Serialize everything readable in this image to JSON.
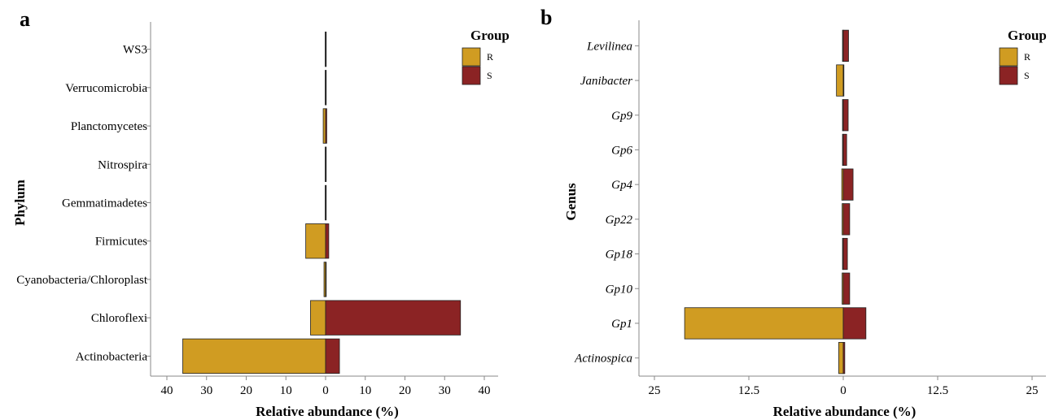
{
  "colors": {
    "R": "#D09C22",
    "S": "#8B2324",
    "axis": "#888888",
    "border": "#222222"
  },
  "chart_data": [
    {
      "panel": "a",
      "type": "bar",
      "orientation": "horizontal-diverging",
      "ylabel": "Phylum",
      "xlabel": "Relative abundance (%)",
      "xlim": [
        -40,
        40
      ],
      "x_ticks": [
        -40,
        -30,
        -20,
        -10,
        0,
        10,
        20,
        30,
        40
      ],
      "x_tick_labels": [
        "40",
        "30",
        "20",
        "10",
        "0",
        "10",
        "20",
        "30",
        "40"
      ],
      "categories": [
        "Actinobacteria",
        "Chloroflexi",
        "Cyanobacteria/Chloroplast",
        "Firmicutes",
        "Gemmatimadetes",
        "Nitrospira",
        "Planctomycetes",
        "Verrucomicrobia",
        "WS3"
      ],
      "italic_categories": false,
      "series": [
        {
          "name": "R",
          "values": [
            36.0,
            3.8,
            0.4,
            5.0,
            0.1,
            0.1,
            0.6,
            0.1,
            0.1
          ]
        },
        {
          "name": "S",
          "values": [
            3.5,
            34.0,
            0.15,
            0.8,
            0.1,
            0.1,
            0.3,
            0.1,
            0.1
          ]
        }
      ],
      "legend": {
        "title": "Group",
        "entries": [
          "R",
          "S"
        ],
        "position": "top-right"
      },
      "grid": false
    },
    {
      "panel": "b",
      "type": "bar",
      "orientation": "horizontal-diverging",
      "ylabel": "Genus",
      "xlabel": "Relative abundance (%)",
      "xlim": [
        -25,
        25
      ],
      "x_ticks": [
        -25,
        -12.5,
        0,
        12.5,
        25
      ],
      "x_tick_labels": [
        "25",
        "12.5",
        "0",
        "12.5",
        "25"
      ],
      "categories": [
        "Actinospica",
        "Gp1",
        "Gp10",
        "Gp18",
        "Gp22",
        "Gp4",
        "Gp6",
        "Gp9",
        "Janibacter",
        "Levilinea"
      ],
      "italic_categories": true,
      "series": [
        {
          "name": "R",
          "values": [
            0.6,
            21.0,
            0.15,
            0.1,
            0.15,
            0.2,
            0.1,
            0.1,
            0.9,
            0.1
          ]
        },
        {
          "name": "S",
          "values": [
            0.2,
            3.0,
            0.85,
            0.55,
            0.85,
            1.3,
            0.45,
            0.65,
            0.05,
            0.7
          ]
        }
      ],
      "legend": {
        "title": "Group",
        "entries": [
          "R",
          "S"
        ],
        "position": "top-right"
      },
      "grid": false
    }
  ]
}
